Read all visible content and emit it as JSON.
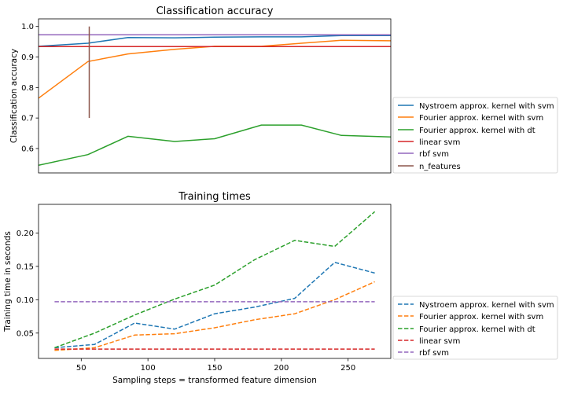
{
  "chart_data": [
    {
      "type": "line",
      "title": "Classification accuracy",
      "xlabel": "",
      "ylabel": "Classification accuracy",
      "xlim": [
        18,
        282
      ],
      "ylim": [
        0.52,
        1.025
      ],
      "x_ticks": [],
      "y_ticks": [
        0.6,
        0.7,
        0.8,
        0.9,
        1.0
      ],
      "y_tick_labels": [
        "0.6",
        "0.7",
        "0.8",
        "0.9",
        "1.0"
      ],
      "legend_position": "outside-right",
      "series": [
        {
          "name": "Nystroem approx. kernel with svm",
          "color": "#1f77b4",
          "dash": "solid",
          "x": [
            18,
            55,
            85,
            120,
            150,
            185,
            215,
            245,
            282
          ],
          "y": [
            0.935,
            0.945,
            0.964,
            0.963,
            0.965,
            0.966,
            0.966,
            0.97,
            0.97
          ]
        },
        {
          "name": "Fourier approx. kernel with svm",
          "color": "#ff7f0e",
          "dash": "solid",
          "x": [
            18,
            55,
            85,
            120,
            150,
            185,
            215,
            245,
            282
          ],
          "y": [
            0.765,
            0.885,
            0.91,
            0.925,
            0.935,
            0.935,
            0.945,
            0.955,
            0.953
          ]
        },
        {
          "name": "Fourier approx. kernel with dt",
          "color": "#2ca02c",
          "dash": "solid",
          "x": [
            18,
            55,
            85,
            120,
            150,
            185,
            215,
            245,
            282
          ],
          "y": [
            0.545,
            0.58,
            0.64,
            0.623,
            0.632,
            0.677,
            0.677,
            0.643,
            0.638
          ]
        },
        {
          "name": "linear svm",
          "color": "#d62728",
          "dash": "solid",
          "x": [
            18,
            282
          ],
          "y": [
            0.934,
            0.934
          ]
        },
        {
          "name": "rbf svm",
          "color": "#9467bd",
          "dash": "solid",
          "x": [
            18,
            282
          ],
          "y": [
            0.973,
            0.973
          ]
        },
        {
          "name": "n_features",
          "color": "#8c564b",
          "dash": "solid",
          "x": [
            56,
            56
          ],
          "y": [
            0.7,
            1.0
          ]
        }
      ]
    },
    {
      "type": "line",
      "title": "Training times",
      "xlabel": "Sampling steps = transformed feature dimension",
      "ylabel": "Training time in seconds",
      "xlim": [
        18,
        282
      ],
      "ylim": [
        0.012,
        0.243
      ],
      "x_ticks": [
        50,
        100,
        150,
        200,
        250
      ],
      "x_tick_labels": [
        "50",
        "100",
        "150",
        "200",
        "250"
      ],
      "y_ticks": [
        0.05,
        0.1,
        0.15,
        0.2
      ],
      "y_tick_labels": [
        "0.05",
        "0.10",
        "0.15",
        "0.20"
      ],
      "legend_position": "outside-right",
      "series": [
        {
          "name": "Nystroem approx. kernel with svm",
          "color": "#1f77b4",
          "dash": "dashed",
          "x": [
            30,
            60,
            90,
            120,
            150,
            180,
            210,
            240,
            270
          ],
          "y": [
            0.028,
            0.033,
            0.065,
            0.056,
            0.079,
            0.089,
            0.102,
            0.156,
            0.14
          ]
        },
        {
          "name": "Fourier approx. kernel with svm",
          "color": "#ff7f0e",
          "dash": "dashed",
          "x": [
            30,
            60,
            90,
            120,
            150,
            180,
            210,
            240,
            270
          ],
          "y": [
            0.024,
            0.028,
            0.047,
            0.049,
            0.058,
            0.07,
            0.079,
            0.1,
            0.127
          ]
        },
        {
          "name": "Fourier approx. kernel with dt",
          "color": "#2ca02c",
          "dash": "dashed",
          "x": [
            30,
            60,
            90,
            120,
            150,
            180,
            210,
            240,
            270
          ],
          "y": [
            0.028,
            0.05,
            0.077,
            0.101,
            0.122,
            0.16,
            0.189,
            0.18,
            0.232
          ]
        },
        {
          "name": "linear svm",
          "color": "#d62728",
          "dash": "dashed",
          "x": [
            30,
            270
          ],
          "y": [
            0.026,
            0.026
          ]
        },
        {
          "name": "rbf svm",
          "color": "#9467bd",
          "dash": "dashed",
          "x": [
            30,
            270
          ],
          "y": [
            0.097,
            0.097
          ]
        }
      ]
    }
  ]
}
